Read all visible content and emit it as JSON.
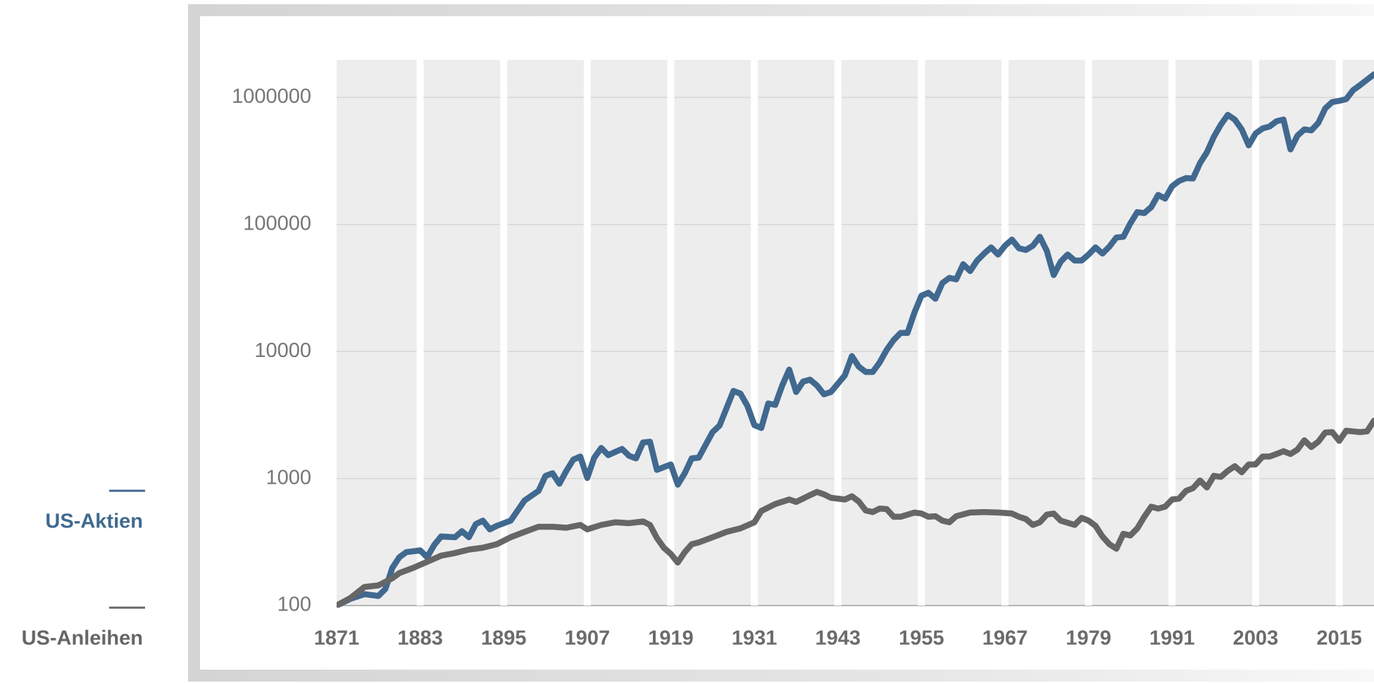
{
  "chart_data": {
    "type": "line",
    "log_scale": true,
    "grid": true,
    "legend": "left",
    "xlim": [
      1871,
      2020
    ],
    "xticks": [
      1871,
      1883,
      1895,
      1907,
      1919,
      1931,
      1943,
      1955,
      1967,
      1979,
      1991,
      2003,
      2015
    ],
    "ylim": [
      100,
      2000000
    ],
    "yticks": [
      100,
      1000,
      10000,
      100000,
      1000000
    ],
    "series": [
      {
        "name": "US-Aktien",
        "color": "#41698f",
        "x": [
          1871,
          1873,
          1875,
          1877,
          1878,
          1879,
          1880,
          1881,
          1883,
          1884,
          1885,
          1886,
          1888,
          1889,
          1890,
          1891,
          1892,
          1893,
          1894,
          1896,
          1898,
          1900,
          1901,
          1902,
          1903,
          1904,
          1905,
          1906,
          1907,
          1908,
          1909,
          1910,
          1912,
          1913,
          1914,
          1915,
          1916,
          1917,
          1919,
          1920,
          1921,
          1922,
          1923,
          1925,
          1926,
          1928,
          1929,
          1930,
          1931,
          1932,
          1933,
          1934,
          1935,
          1936,
          1937,
          1938,
          1939,
          1940,
          1941,
          1942,
          1944,
          1945,
          1946,
          1947,
          1948,
          1949,
          1950,
          1951,
          1952,
          1953,
          1954,
          1955,
          1956,
          1957,
          1958,
          1959,
          1960,
          1961,
          1962,
          1963,
          1964,
          1965,
          1966,
          1967,
          1968,
          1969,
          1970,
          1971,
          1972,
          1973,
          1974,
          1975,
          1976,
          1977,
          1978,
          1979,
          1980,
          1981,
          1982,
          1983,
          1984,
          1985,
          1986,
          1987,
          1988,
          1989,
          1990,
          1991,
          1992,
          1993,
          1994,
          1995,
          1996,
          1997,
          1998,
          1999,
          2000,
          2001,
          2002,
          2003,
          2004,
          2005,
          2006,
          2007,
          2008,
          2009,
          2010,
          2011,
          2012,
          2013,
          2014,
          2015,
          2016,
          2017,
          2018,
          2019,
          2020
        ],
        "values": [
          100,
          113,
          123,
          119,
          135,
          198,
          240,
          263,
          272,
          240,
          299,
          350,
          345,
          385,
          345,
          438,
          466,
          398,
          424,
          466,
          672,
          800,
          1050,
          1100,
          910,
          1150,
          1410,
          1490,
          1010,
          1460,
          1740,
          1530,
          1710,
          1510,
          1440,
          1920,
          1950,
          1170,
          1290,
          895,
          1100,
          1440,
          1460,
          2320,
          2610,
          4890,
          4660,
          3730,
          2630,
          2500,
          3900,
          3800,
          5400,
          7200,
          4800,
          5800,
          6000,
          5400,
          4600,
          4800,
          6500,
          9200,
          7600,
          6900,
          6900,
          8200,
          10300,
          12300,
          14000,
          14000,
          20300,
          27500,
          29000,
          26000,
          34600,
          38000,
          37000,
          48600,
          43000,
          52000,
          59000,
          66000,
          58000,
          68000,
          76000,
          65000,
          63000,
          68000,
          80000,
          62000,
          40000,
          51000,
          58000,
          52000,
          52000,
          58000,
          66000,
          59000,
          67000,
          79000,
          80000,
          102000,
          125000,
          123000,
          137000,
          171000,
          160000,
          200000,
          220000,
          232000,
          230000,
          304000,
          370000,
          490000,
          610000,
          730000,
          670000,
          560000,
          420000,
          520000,
          570000,
          590000,
          650000,
          670000,
          390000,
          500000,
          560000,
          550000,
          630000,
          820000,
          920000,
          940000,
          970000,
          1140000,
          1250000,
          1380000,
          1520000
        ]
      },
      {
        "name": "US-Anleihen",
        "color": "#666666",
        "x": [
          1871,
          1873,
          1875,
          1877,
          1879,
          1880,
          1882,
          1884,
          1886,
          1888,
          1890,
          1892,
          1894,
          1896,
          1898,
          1900,
          1902,
          1904,
          1906,
          1907,
          1909,
          1911,
          1913,
          1915,
          1916,
          1917,
          1918,
          1919,
          1920,
          1921,
          1922,
          1923,
          1925,
          1927,
          1929,
          1931,
          1932,
          1934,
          1936,
          1937,
          1939,
          1940,
          1941,
          1942,
          1944,
          1945,
          1946,
          1947,
          1948,
          1949,
          1950,
          1951,
          1952,
          1954,
          1955,
          1956,
          1957,
          1958,
          1959,
          1960,
          1962,
          1964,
          1966,
          1968,
          1969,
          1970,
          1971,
          1972,
          1973,
          1974,
          1975,
          1977,
          1978,
          1979,
          1980,
          1981,
          1982,
          1983,
          1984,
          1985,
          1986,
          1987,
          1988,
          1989,
          1990,
          1991,
          1992,
          1993,
          1994,
          1995,
          1996,
          1997,
          1998,
          1999,
          2000,
          2001,
          2002,
          2003,
          2004,
          2005,
          2006,
          2007,
          2008,
          2009,
          2010,
          2011,
          2012,
          2013,
          2014,
          2015,
          2016,
          2017,
          2018,
          2019,
          2020
        ],
        "values": [
          100,
          115,
          140,
          144,
          164,
          180,
          198,
          221,
          247,
          259,
          276,
          285,
          304,
          345,
          380,
          417,
          417,
          410,
          431,
          398,
          431,
          452,
          445,
          459,
          431,
          340,
          285,
          255,
          218,
          263,
          304,
          314,
          345,
          380,
          405,
          452,
          555,
          630,
          684,
          655,
          740,
          785,
          750,
          705,
          684,
          725,
          660,
          560,
          545,
          580,
          575,
          500,
          500,
          540,
          530,
          500,
          505,
          466,
          452,
          505,
          540,
          545,
          540,
          530,
          500,
          480,
          431,
          452,
          520,
          530,
          466,
          431,
          490,
          466,
          424,
          350,
          304,
          280,
          367,
          356,
          405,
          500,
          600,
          580,
          600,
          684,
          695,
          800,
          840,
          965,
          850,
          1050,
          1030,
          1150,
          1250,
          1120,
          1290,
          1290,
          1490,
          1490,
          1560,
          1640,
          1560,
          1690,
          2000,
          1770,
          1950,
          2300,
          2320,
          1980,
          2380,
          2350,
          2320,
          2350,
          2850
        ]
      }
    ]
  }
}
